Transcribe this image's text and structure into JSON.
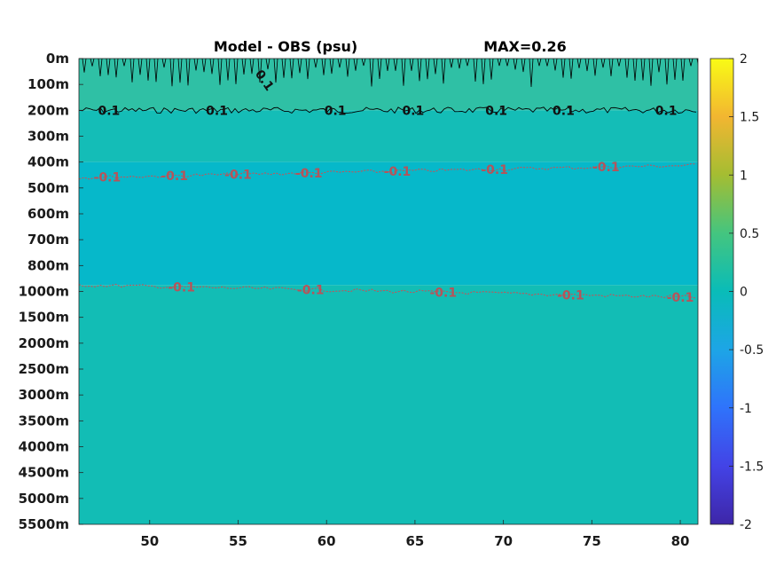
{
  "chart_data": {
    "type": "heatmap",
    "title": "Model - OBS (psu)",
    "subtitle": "MAX=0.26",
    "xlim": [
      46,
      81
    ],
    "x_ticks": [
      50,
      55,
      60,
      65,
      70,
      75,
      80
    ],
    "y_ticks": [
      "0m",
      "100m",
      "200m",
      "300m",
      "400m",
      "500m",
      "600m",
      "700m",
      "800m",
      "1000m",
      "1500m",
      "2000m",
      "2500m",
      "3000m",
      "3500m",
      "4000m",
      "4500m",
      "5000m",
      "5500m"
    ],
    "colorbar": {
      "range": [
        -2,
        2
      ],
      "ticks": [
        "2",
        "1.5",
        "1",
        "0.5",
        "0",
        "-0.5",
        "-1",
        "-1.5",
        "-2"
      ],
      "colormap": "parula"
    },
    "field_bands": [
      {
        "from_level": "0m",
        "to_level": "200m",
        "value": 0.1,
        "color": "#2fc0a5"
      },
      {
        "from_level": "200m",
        "to_level": "400m",
        "value": 0.0,
        "color": "#14bdb7"
      },
      {
        "from_level": "400m",
        "to_level": "950m",
        "value": -0.12,
        "color": "#06b8ca"
      },
      {
        "from_level": "950m",
        "to_level": "5500m",
        "value": 0.02,
        "color": "#12bdb5"
      }
    ],
    "contours": [
      {
        "level": 0.1,
        "color": "#000000",
        "depth": "200m",
        "labels": [
          {
            "text": "0.1",
            "x": 47.7
          },
          {
            "text": "0.1",
            "x": 53.8
          },
          {
            "text": "0.1",
            "x": 60.5
          },
          {
            "text": "0.1",
            "x": 64.9
          },
          {
            "text": "0.1",
            "x": 69.6
          },
          {
            "text": "0.1",
            "x": 73.4
          },
          {
            "text": "0.1",
            "x": 79.2
          }
        ]
      },
      {
        "level": -0.1,
        "color": "#c0555a",
        "depth": "460m",
        "labels": [
          {
            "text": "-0.1",
            "x": 47.6
          },
          {
            "text": "-0.1",
            "x": 51.4
          },
          {
            "text": "-0.1",
            "x": 55.0
          },
          {
            "text": "-0.1",
            "x": 59.0
          },
          {
            "text": "-0.1",
            "x": 64.0
          },
          {
            "text": "-0.1",
            "x": 69.5
          },
          {
            "text": "-0.1",
            "x": 75.8
          }
        ]
      },
      {
        "level": -0.1,
        "color": "#c0555a",
        "depth": "950m",
        "labels": [
          {
            "text": "-0.1",
            "x": 51.8
          },
          {
            "text": "-0.1",
            "x": 59.1
          },
          {
            "text": "-0.1",
            "x": 66.6
          },
          {
            "text": "-0.1",
            "x": 73.8
          },
          {
            "text": "-0.1",
            "x": 80.0
          }
        ]
      }
    ],
    "surface_contour_label": {
      "text": "0.1",
      "x": 56.3,
      "depth": "100m"
    }
  }
}
